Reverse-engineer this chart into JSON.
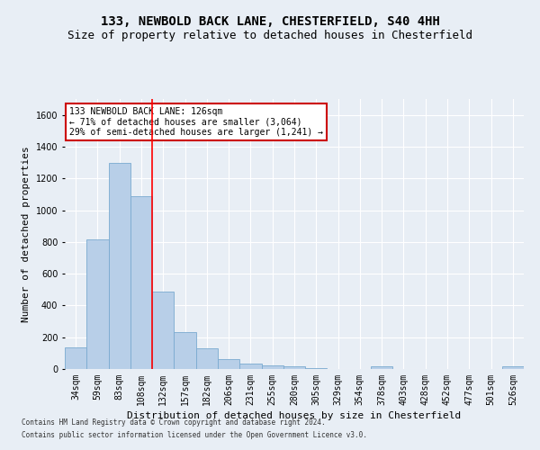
{
  "title1": "133, NEWBOLD BACK LANE, CHESTERFIELD, S40 4HH",
  "title2": "Size of property relative to detached houses in Chesterfield",
  "xlabel": "Distribution of detached houses by size in Chesterfield",
  "ylabel": "Number of detached properties",
  "categories": [
    "34sqm",
    "59sqm",
    "83sqm",
    "108sqm",
    "132sqm",
    "157sqm",
    "182sqm",
    "206sqm",
    "231sqm",
    "255sqm",
    "280sqm",
    "305sqm",
    "329sqm",
    "354sqm",
    "378sqm",
    "403sqm",
    "428sqm",
    "452sqm",
    "477sqm",
    "501sqm",
    "526sqm"
  ],
  "values": [
    135,
    815,
    1295,
    1090,
    490,
    230,
    130,
    65,
    35,
    25,
    15,
    5,
    0,
    0,
    15,
    0,
    0,
    0,
    0,
    0,
    15
  ],
  "bar_color": "#b8cfe8",
  "bar_edge_color": "#7aaad0",
  "red_line_x": 3.5,
  "ylim": [
    0,
    1700
  ],
  "yticks": [
    0,
    200,
    400,
    600,
    800,
    1000,
    1200,
    1400,
    1600
  ],
  "annotation_text": "133 NEWBOLD BACK LANE: 126sqm\n← 71% of detached houses are smaller (3,064)\n29% of semi-detached houses are larger (1,241) →",
  "annotation_box_color": "#ffffff",
  "annotation_box_edge": "#cc0000",
  "footer1": "Contains HM Land Registry data © Crown copyright and database right 2024.",
  "footer2": "Contains public sector information licensed under the Open Government Licence v3.0.",
  "bg_color": "#e8eef5",
  "plot_bg_color": "#e8eef5",
  "grid_color": "#ffffff",
  "title1_fontsize": 10,
  "title2_fontsize": 9,
  "xlabel_fontsize": 8,
  "ylabel_fontsize": 8,
  "tick_fontsize": 7,
  "ann_fontsize": 7,
  "footer_fontsize": 5.5
}
